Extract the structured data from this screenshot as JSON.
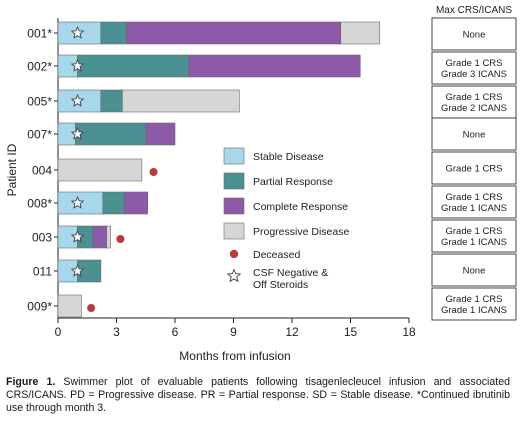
{
  "chart_data": {
    "type": "swimmer",
    "title": "",
    "xlabel": "Months from infusion",
    "ylabel": "Patient ID",
    "xlim": [
      0,
      18
    ],
    "xticks": [
      0,
      3,
      6,
      9,
      12,
      15,
      18
    ],
    "grid": false,
    "legend_position": "center-right",
    "status_colors": {
      "stable": "#a7d7ea",
      "partial": "#4b9191",
      "complete": "#8c5aa8",
      "progressive": "#d6d6d6"
    },
    "legend": [
      {
        "key": "stable",
        "label": "Stable Disease"
      },
      {
        "key": "partial",
        "label": "Partial Response"
      },
      {
        "key": "complete",
        "label": "Complete Response"
      },
      {
        "key": "progressive",
        "label": "Progressive Disease"
      }
    ],
    "marker_legend": [
      {
        "key": "deceased",
        "label": "Deceased",
        "color": "#b83a3a"
      },
      {
        "key": "csf",
        "label": "CSF Negative &\nOff Steroids"
      }
    ],
    "side_table_header": "Max CRS/ICANS",
    "patients": [
      {
        "id": "001*",
        "segments": [
          {
            "status": "stable",
            "start": 0,
            "end": 2.2
          },
          {
            "status": "partial",
            "start": 2.2,
            "end": 3.5
          },
          {
            "status": "complete",
            "start": 3.5,
            "end": 14.5
          },
          {
            "status": "progressive",
            "start": 14.5,
            "end": 16.5
          }
        ],
        "csf_star": 1.0,
        "deceased": null,
        "tox": "None"
      },
      {
        "id": "002*",
        "segments": [
          {
            "status": "stable",
            "start": 0,
            "end": 1.0
          },
          {
            "status": "partial",
            "start": 1.0,
            "end": 6.7
          },
          {
            "status": "complete",
            "start": 6.7,
            "end": 15.5
          }
        ],
        "csf_star": 1.0,
        "deceased": null,
        "tox": "Grade 1 CRS\nGrade 3 ICANS"
      },
      {
        "id": "005*",
        "segments": [
          {
            "status": "stable",
            "start": 0,
            "end": 2.2
          },
          {
            "status": "partial",
            "start": 2.2,
            "end": 3.3
          },
          {
            "status": "progressive",
            "start": 3.3,
            "end": 9.3
          }
        ],
        "csf_star": 1.0,
        "deceased": null,
        "tox": "Grade 1 CRS\nGrade 2 ICANS"
      },
      {
        "id": "007*",
        "segments": [
          {
            "status": "stable",
            "start": 0,
            "end": 0.9
          },
          {
            "status": "partial",
            "start": 0.9,
            "end": 4.5
          },
          {
            "status": "complete",
            "start": 4.5,
            "end": 6.0
          }
        ],
        "csf_star": 1.0,
        "deceased": null,
        "tox": "None"
      },
      {
        "id": "004",
        "segments": [
          {
            "status": "progressive",
            "start": 0,
            "end": 4.3
          }
        ],
        "csf_star": null,
        "deceased": 4.9,
        "tox": "Grade 1 CRS"
      },
      {
        "id": "008*",
        "segments": [
          {
            "status": "stable",
            "start": 0,
            "end": 2.3
          },
          {
            "status": "partial",
            "start": 2.3,
            "end": 3.4
          },
          {
            "status": "complete",
            "start": 3.4,
            "end": 4.6
          }
        ],
        "csf_star": 1.0,
        "deceased": null,
        "tox": "Grade 1 CRS\nGrade 1 ICANS"
      },
      {
        "id": "003",
        "segments": [
          {
            "status": "stable",
            "start": 0,
            "end": 1.0
          },
          {
            "status": "partial",
            "start": 1.0,
            "end": 1.8
          },
          {
            "status": "complete",
            "start": 1.8,
            "end": 2.5
          },
          {
            "status": "progressive",
            "start": 2.5,
            "end": 2.7
          }
        ],
        "csf_star": 1.0,
        "deceased": 3.2,
        "tox": "Grade 1 CRS\nGrade 1 ICANS"
      },
      {
        "id": "011",
        "segments": [
          {
            "status": "stable",
            "start": 0,
            "end": 1.0
          },
          {
            "status": "partial",
            "start": 1.0,
            "end": 2.2
          }
        ],
        "csf_star": 1.0,
        "deceased": null,
        "tox": "None"
      },
      {
        "id": "009*",
        "segments": [
          {
            "status": "progressive",
            "start": 0,
            "end": 1.2
          }
        ],
        "csf_star": null,
        "deceased": 1.7,
        "tox": "Grade 1 CRS\nGrade 1 ICANS"
      }
    ]
  },
  "caption": {
    "label": "Figure 1.",
    "text": " Swimmer plot of evaluable patients following tisagenlecleucel infusion and associated CRS/ICANS. PD = Progressive disease. PR = Partial response. SD = Stable disease. *Continued ibrutinib use through month 3."
  }
}
